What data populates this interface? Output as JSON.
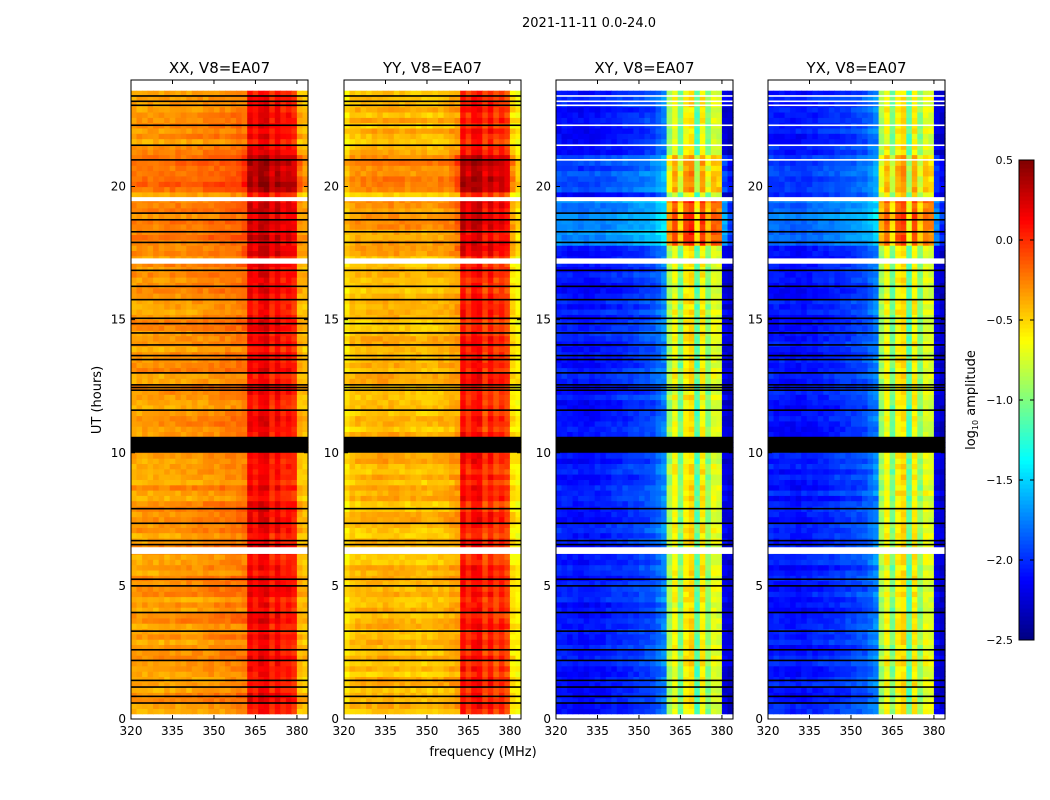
{
  "chart_data": {
    "type": "heatmap",
    "title": "2021-11-11 0.0-24.0",
    "xlabel": "frequency (MHz)",
    "ylabel": "UT (hours)",
    "xlim": [
      320,
      384
    ],
    "ylim": [
      0,
      24
    ],
    "xticks": [
      320,
      335,
      350,
      365,
      380
    ],
    "yticks": [
      0,
      5,
      10,
      15,
      20
    ],
    "data_time_range": [
      0.2,
      23.6
    ],
    "colorbar": {
      "label": "log",
      "label_sub": "10",
      "label_rest": " amplitude",
      "colormap": "jet",
      "range": [
        -2.5,
        0.5
      ],
      "ticks": [
        "0.5",
        "0.0",
        "−0.5",
        "−1.0",
        "−1.5",
        "−2.0",
        "−2.5"
      ],
      "tick_values": [
        0.5,
        0.0,
        -0.5,
        -1.0,
        -1.5,
        -2.0,
        -2.5
      ]
    },
    "flagged_hours": [
      23.4,
      23.2,
      23.05,
      22.3,
      21.55,
      21.0,
      19.0,
      18.75,
      18.3,
      17.9,
      16.85,
      16.25,
      15.75,
      15.05,
      14.85,
      14.5,
      14.05,
      13.65,
      13.5,
      13.0,
      12.55,
      12.45,
      12.35,
      11.6,
      7.9,
      7.35,
      6.7,
      6.55,
      5.25,
      5.0,
      4.0,
      3.3,
      2.6,
      2.2,
      1.45,
      1.2,
      0.85,
      0.6
    ],
    "flagged_bands_hours": [
      [
        10.0,
        10.6
      ]
    ],
    "no_data_hours": [
      [
        6.2,
        6.45
      ],
      [
        17.1,
        17.3
      ],
      [
        19.45,
        19.6
      ]
    ],
    "panels": [
      {
        "title": "XX, V8=EA07",
        "freq_profile": [
          [
            320,
            -0.35
          ],
          [
            330,
            -0.33
          ],
          [
            345,
            -0.3
          ],
          [
            355,
            -0.25
          ],
          [
            361,
            -0.22
          ],
          [
            362,
            0.1
          ],
          [
            364,
            0.22
          ],
          [
            365.5,
            0.0
          ],
          [
            367,
            0.18
          ],
          [
            369.5,
            0.2
          ],
          [
            370.5,
            -0.05
          ],
          [
            372,
            0.15
          ],
          [
            374.5,
            0.15
          ],
          [
            375.5,
            -0.1
          ],
          [
            377,
            0.08
          ],
          [
            379.5,
            0.0
          ],
          [
            381,
            -0.4
          ],
          [
            384,
            -0.45
          ]
        ],
        "time_bands": [
          {
            "from": 19.6,
            "to": 21.0,
            "offset": 0.25
          },
          {
            "from": 17.3,
            "to": 19.4,
            "offset": 0.12
          }
        ]
      },
      {
        "title": "YY, V8=EA07",
        "freq_profile": [
          [
            320,
            -0.6
          ],
          [
            323,
            -0.45
          ],
          [
            335,
            -0.4
          ],
          [
            350,
            -0.45
          ],
          [
            358,
            -0.4
          ],
          [
            361,
            -0.35
          ],
          [
            362,
            0.05
          ],
          [
            364,
            0.15
          ],
          [
            365.5,
            -0.1
          ],
          [
            367,
            0.1
          ],
          [
            369.5,
            0.12
          ],
          [
            370.5,
            -0.15
          ],
          [
            372,
            0.08
          ],
          [
            374.5,
            0.05
          ],
          [
            375.5,
            -0.2
          ],
          [
            377,
            0.0
          ],
          [
            379.5,
            -0.1
          ],
          [
            381,
            -0.55
          ],
          [
            384,
            -0.65
          ]
        ],
        "time_bands": [
          {
            "from": 19.6,
            "to": 21.0,
            "offset": 0.3
          },
          {
            "from": 17.3,
            "to": 19.4,
            "offset": 0.15
          }
        ]
      },
      {
        "title": "XY, V8=EA07",
        "freq_profile": [
          [
            320,
            -2.05
          ],
          [
            330,
            -2.1
          ],
          [
            345,
            -2.0
          ],
          [
            355,
            -1.9
          ],
          [
            360,
            -1.7
          ],
          [
            361,
            -0.9
          ],
          [
            364,
            -0.5
          ],
          [
            365.5,
            -1.3
          ],
          [
            367,
            -0.6
          ],
          [
            369.5,
            -0.5
          ],
          [
            370.5,
            -1.4
          ],
          [
            372,
            -0.6
          ],
          [
            374.5,
            -0.55
          ],
          [
            375.5,
            -1.4
          ],
          [
            377,
            -0.7
          ],
          [
            379.5,
            -0.75
          ],
          [
            381,
            -2.2
          ],
          [
            384,
            -2.3
          ]
        ],
        "time_bands": [
          {
            "from": 17.6,
            "to": 19.4,
            "offset": 0.55
          },
          {
            "from": 19.6,
            "to": 21.0,
            "offset": 0.25
          }
        ]
      },
      {
        "title": "YX, V8=EA07",
        "freq_profile": [
          [
            320,
            -2.05
          ],
          [
            330,
            -2.1
          ],
          [
            345,
            -2.0
          ],
          [
            355,
            -1.9
          ],
          [
            360,
            -1.7
          ],
          [
            361,
            -0.9
          ],
          [
            364,
            -0.5
          ],
          [
            365.5,
            -1.3
          ],
          [
            367,
            -0.6
          ],
          [
            369.5,
            -0.5
          ],
          [
            370.5,
            -1.4
          ],
          [
            372,
            -0.6
          ],
          [
            374.5,
            -0.55
          ],
          [
            375.5,
            -1.4
          ],
          [
            377,
            -0.7
          ],
          [
            379.5,
            -0.75
          ],
          [
            381,
            -2.2
          ],
          [
            384,
            -2.3
          ]
        ],
        "time_bands": [
          {
            "from": 17.6,
            "to": 19.4,
            "offset": 0.5
          },
          {
            "from": 19.6,
            "to": 21.0,
            "offset": 0.25
          }
        ]
      }
    ]
  }
}
